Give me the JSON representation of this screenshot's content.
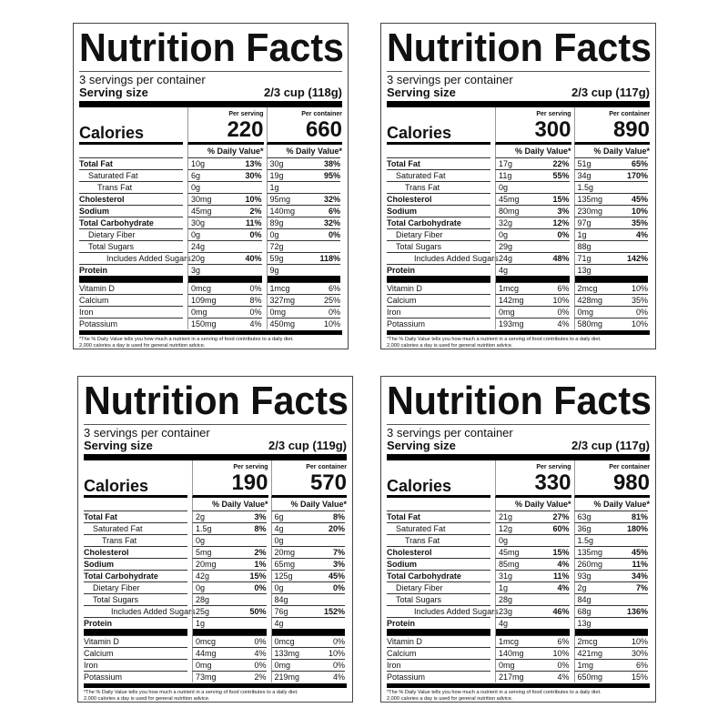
{
  "labels": {
    "title": "Nutrition Facts",
    "servings": "3 servings per container",
    "serving_size": "Serving size",
    "calories": "Calories",
    "per_serving": "Per serving",
    "per_container": "Per container",
    "daily_value": "% Daily Value*",
    "footnote_1": "*The % Daily Value tells you how much a nutrient in a serving of food contributes to a daily diet.",
    "footnote_2": "2,000 calories a day is used for general nutrition advice."
  },
  "nutrients": [
    {
      "name": "Total Fat",
      "bold": true,
      "indent": 0,
      "dv_bold": true
    },
    {
      "name": "Saturated Fat",
      "bold": false,
      "indent": 1,
      "dv_bold": true
    },
    {
      "name": "Trans Fat",
      "bold": false,
      "indent": 2,
      "dv_bold": true
    },
    {
      "name": "Cholesterol",
      "bold": true,
      "indent": 0,
      "dv_bold": true
    },
    {
      "name": "Sodium",
      "bold": true,
      "indent": 0,
      "dv_bold": true
    },
    {
      "name": "Total Carbohydrate",
      "bold": true,
      "indent": 0,
      "dv_bold": true
    },
    {
      "name": "Dietary Fiber",
      "bold": false,
      "indent": 1,
      "dv_bold": true
    },
    {
      "name": "Total Sugars",
      "bold": false,
      "indent": 1,
      "dv_bold": true
    },
    {
      "name": "Includes Added Sugars",
      "bold": false,
      "indent": 3,
      "dv_bold": true
    },
    {
      "name": "Protein",
      "bold": true,
      "indent": 0,
      "dv_bold": true
    },
    {
      "name": "Vitamin D",
      "bold": false,
      "indent": 0,
      "dv_bold": false,
      "after_bar": true
    },
    {
      "name": "Calcium",
      "bold": false,
      "indent": 0,
      "dv_bold": false
    },
    {
      "name": "Iron",
      "bold": false,
      "indent": 0,
      "dv_bold": false
    },
    {
      "name": "Potassium",
      "bold": false,
      "indent": 0,
      "dv_bold": false
    }
  ],
  "labels_list": [
    {
      "serving_size": "2/3 cup (118g)",
      "calories_serving": "220",
      "calories_container": "660",
      "serving": [
        [
          "10g",
          "13%"
        ],
        [
          "6g",
          "30%"
        ],
        [
          "0g",
          ""
        ],
        [
          "30mg",
          "10%"
        ],
        [
          "45mg",
          "2%"
        ],
        [
          "30g",
          "11%"
        ],
        [
          "0g",
          "0%"
        ],
        [
          "24g",
          ""
        ],
        [
          "20g",
          "40%"
        ],
        [
          "3g",
          ""
        ],
        [
          "0mcg",
          "0%"
        ],
        [
          "109mg",
          "8%"
        ],
        [
          "0mg",
          "0%"
        ],
        [
          "150mg",
          "4%"
        ]
      ],
      "container": [
        [
          "30g",
          "38%"
        ],
        [
          "19g",
          "95%"
        ],
        [
          "1g",
          ""
        ],
        [
          "95mg",
          "32%"
        ],
        [
          "140mg",
          "6%"
        ],
        [
          "89g",
          "32%"
        ],
        [
          "0g",
          "0%"
        ],
        [
          "72g",
          ""
        ],
        [
          "59g",
          "118%"
        ],
        [
          "9g",
          ""
        ],
        [
          "1mcg",
          "6%"
        ],
        [
          "327mg",
          "25%"
        ],
        [
          "0mg",
          "0%"
        ],
        [
          "450mg",
          "10%"
        ]
      ]
    },
    {
      "serving_size": "2/3 cup (117g)",
      "calories_serving": "300",
      "calories_container": "890",
      "serving": [
        [
          "17g",
          "22%"
        ],
        [
          "11g",
          "55%"
        ],
        [
          "0g",
          ""
        ],
        [
          "45mg",
          "15%"
        ],
        [
          "80mg",
          "3%"
        ],
        [
          "32g",
          "12%"
        ],
        [
          "0g",
          "0%"
        ],
        [
          "29g",
          ""
        ],
        [
          "24g",
          "48%"
        ],
        [
          "4g",
          ""
        ],
        [
          "1mcg",
          "6%"
        ],
        [
          "142mg",
          "10%"
        ],
        [
          "0mg",
          "0%"
        ],
        [
          "193mg",
          "4%"
        ]
      ],
      "container": [
        [
          "51g",
          "65%"
        ],
        [
          "34g",
          "170%"
        ],
        [
          "1.5g",
          ""
        ],
        [
          "135mg",
          "45%"
        ],
        [
          "230mg",
          "10%"
        ],
        [
          "97g",
          "35%"
        ],
        [
          "1g",
          "4%"
        ],
        [
          "88g",
          ""
        ],
        [
          "71g",
          "142%"
        ],
        [
          "13g",
          ""
        ],
        [
          "2mcg",
          "10%"
        ],
        [
          "428mg",
          "35%"
        ],
        [
          "0mg",
          "0%"
        ],
        [
          "580mg",
          "10%"
        ]
      ]
    },
    {
      "serving_size": "2/3 cup (119g)",
      "calories_serving": "190",
      "calories_container": "570",
      "serving": [
        [
          "2g",
          "3%"
        ],
        [
          "1.5g",
          "8%"
        ],
        [
          "0g",
          ""
        ],
        [
          "5mg",
          "2%"
        ],
        [
          "20mg",
          "1%"
        ],
        [
          "42g",
          "15%"
        ],
        [
          "0g",
          "0%"
        ],
        [
          "28g",
          ""
        ],
        [
          "25g",
          "50%"
        ],
        [
          "1g",
          ""
        ],
        [
          "0mcg",
          "0%"
        ],
        [
          "44mg",
          "4%"
        ],
        [
          "0mg",
          "0%"
        ],
        [
          "73mg",
          "2%"
        ]
      ],
      "container": [
        [
          "6g",
          "8%"
        ],
        [
          "4g",
          "20%"
        ],
        [
          "0g",
          ""
        ],
        [
          "20mg",
          "7%"
        ],
        [
          "65mg",
          "3%"
        ],
        [
          "125g",
          "45%"
        ],
        [
          "0g",
          "0%"
        ],
        [
          "84g",
          ""
        ],
        [
          "76g",
          "152%"
        ],
        [
          "4g",
          ""
        ],
        [
          "0mcg",
          "0%"
        ],
        [
          "133mg",
          "10%"
        ],
        [
          "0mg",
          "0%"
        ],
        [
          "219mg",
          "4%"
        ]
      ]
    },
    {
      "serving_size": "2/3 cup (117g)",
      "calories_serving": "330",
      "calories_container": "980",
      "serving": [
        [
          "21g",
          "27%"
        ],
        [
          "12g",
          "60%"
        ],
        [
          "0g",
          ""
        ],
        [
          "45mg",
          "15%"
        ],
        [
          "85mg",
          "4%"
        ],
        [
          "31g",
          "11%"
        ],
        [
          "1g",
          "4%"
        ],
        [
          "28g",
          ""
        ],
        [
          "23g",
          "46%"
        ],
        [
          "4g",
          ""
        ],
        [
          "1mcg",
          "6%"
        ],
        [
          "140mg",
          "10%"
        ],
        [
          "0mg",
          "0%"
        ],
        [
          "217mg",
          "4%"
        ]
      ],
      "container": [
        [
          "63g",
          "81%"
        ],
        [
          "36g",
          "180%"
        ],
        [
          "1.5g",
          ""
        ],
        [
          "135mg",
          "45%"
        ],
        [
          "260mg",
          "11%"
        ],
        [
          "93g",
          "34%"
        ],
        [
          "2g",
          "7%"
        ],
        [
          "84g",
          ""
        ],
        [
          "68g",
          "136%"
        ],
        [
          "13g",
          ""
        ],
        [
          "2mcg",
          "10%"
        ],
        [
          "421mg",
          "30%"
        ],
        [
          "1mg",
          "6%"
        ],
        [
          "650mg",
          "15%"
        ]
      ]
    }
  ]
}
